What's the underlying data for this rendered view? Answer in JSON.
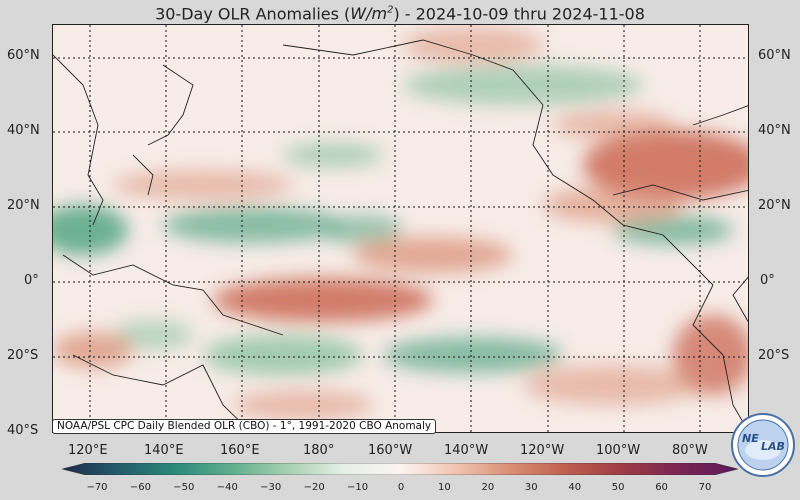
{
  "title": {
    "prefix": "30-Day OLR Anomalies (",
    "unit_base": "W/m",
    "unit_exp": "2",
    "suffix": ") - 2024-10-09 thru 2024-11-08"
  },
  "lat_labels": [
    "60°N",
    "40°N",
    "20°N",
    "0°",
    "20°S",
    "40°S"
  ],
  "lon_labels": [
    "120°E",
    "140°E",
    "160°E",
    "180°",
    "160°W",
    "140°W",
    "120°W",
    "100°W",
    "80°W"
  ],
  "source_note": "NOAA/PSL CPC Daily Blended OLR (CBO) - 1°, 1991-2020 CBO Anomaly",
  "colorbar": {
    "ticks": [
      "−70",
      "−60",
      "−50",
      "−40",
      "−30",
      "−20",
      "−10",
      "0",
      "10",
      "20",
      "30",
      "40",
      "50",
      "60",
      "70"
    ],
    "colors": [
      "#1c2a4a",
      "#235b6b",
      "#2a8a7a",
      "#5fae8e",
      "#a7d0b0",
      "#e6efe6",
      "#fbf4f0",
      "#f0c4b0",
      "#d98c72",
      "#bc5e4c",
      "#9c3a45",
      "#7a2454",
      "#5a1a5a"
    ]
  },
  "logo_text": {
    "left": "NE",
    "right": "LAB"
  },
  "colors": {
    "positive": "#c8604a",
    "negative": "#3e9c76",
    "background": "#d8d8d8"
  }
}
